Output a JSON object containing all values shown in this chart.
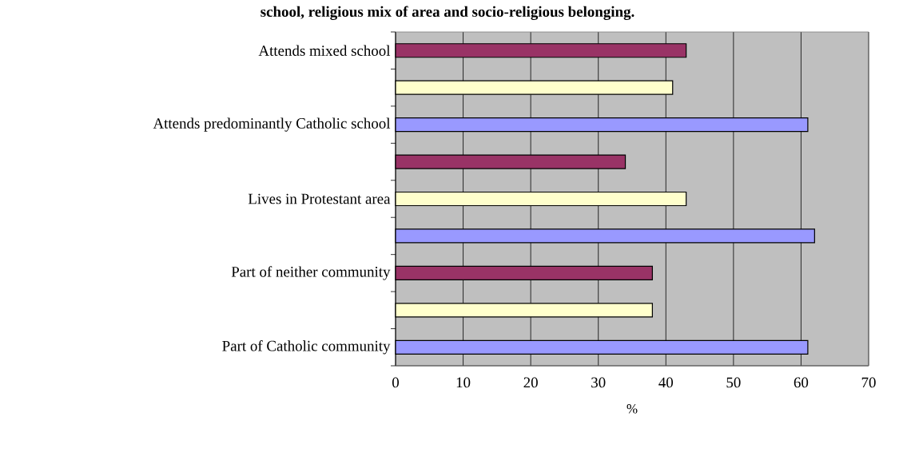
{
  "chart_data": {
    "type": "bar",
    "orientation": "horizontal",
    "title": "school, religious mix of area and socio-religious belonging.",
    "categories": [
      "Attends mixed school",
      null,
      "Attends predominantly Catholic school",
      null,
      "Lives in Protestant area",
      null,
      "Part of neither community",
      null,
      "Part of Catholic community"
    ],
    "values": [
      43,
      41,
      61,
      34,
      43,
      62,
      38,
      38,
      61
    ],
    "colors": [
      "#993366",
      "#ffffcc",
      "#9999ff",
      "#993366",
      "#ffffcc",
      "#9999ff",
      "#993366",
      "#ffffcc",
      "#9999ff"
    ],
    "xlabel": "%",
    "xlim": [
      0,
      70
    ],
    "xticks": [
      0,
      10,
      20,
      30,
      40,
      50,
      60,
      70
    ],
    "grid": "x"
  }
}
